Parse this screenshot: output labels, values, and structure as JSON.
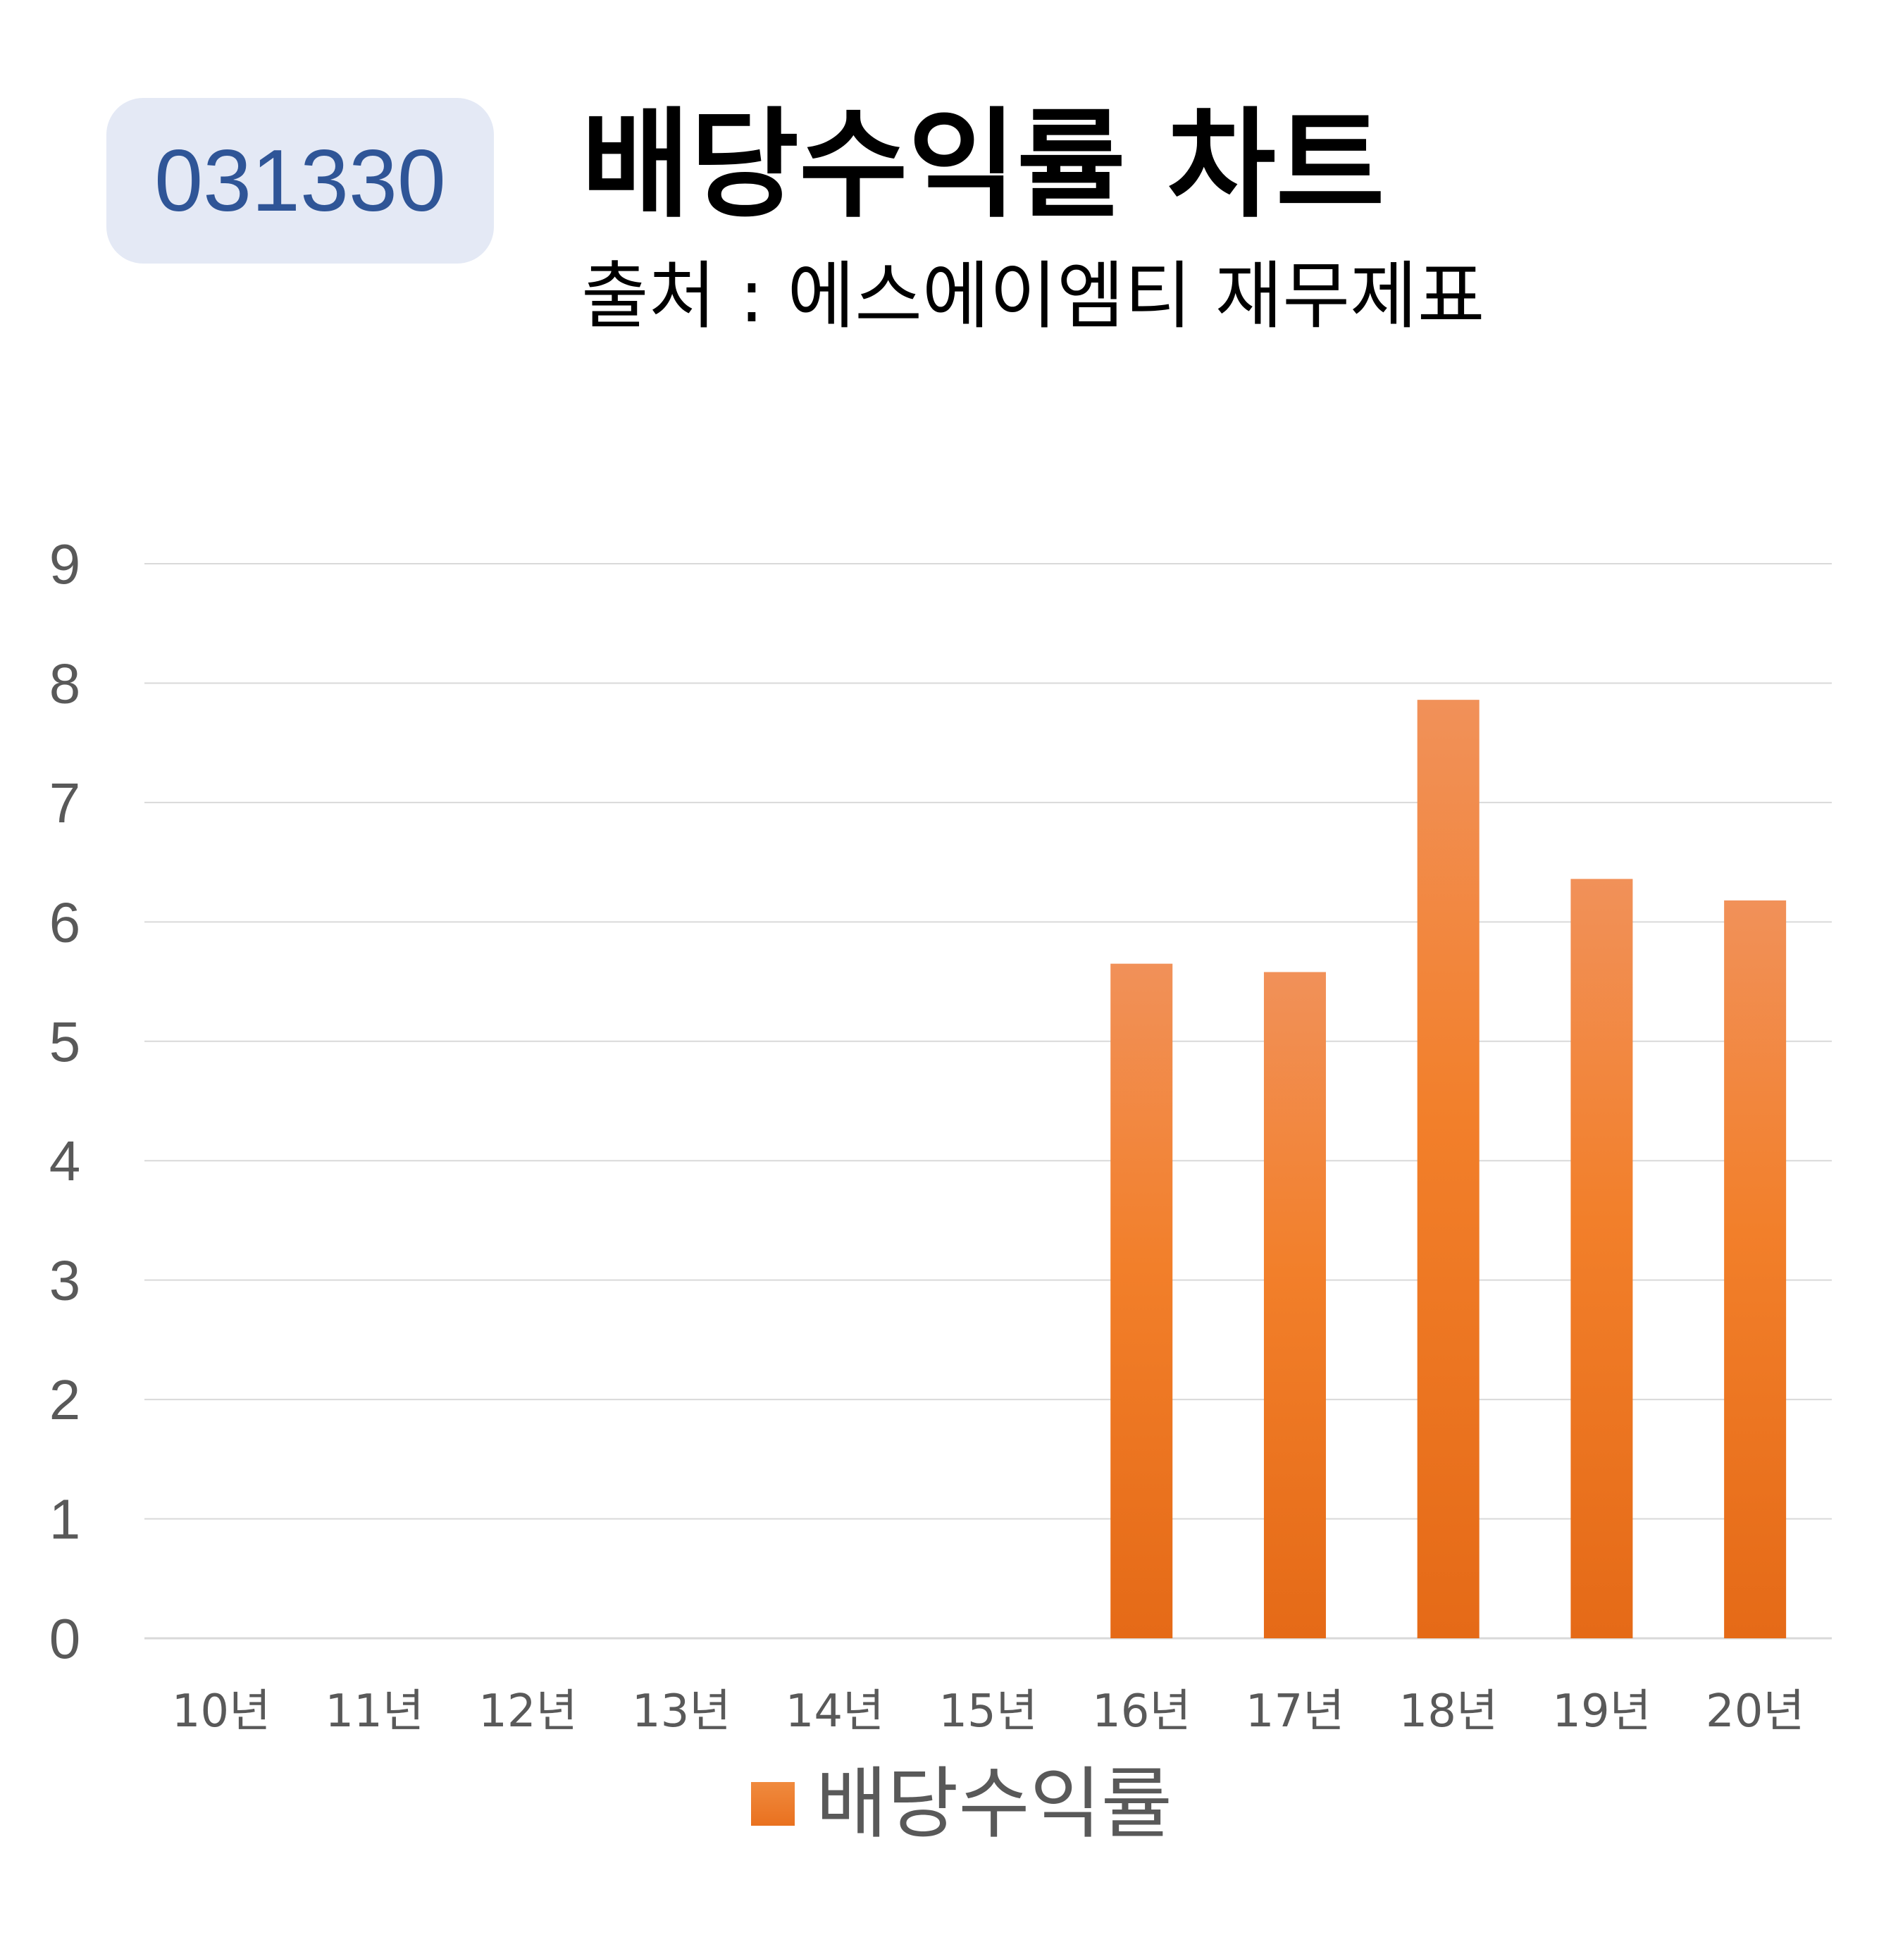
{
  "code": "031330",
  "title": "배당수익률 차트",
  "subtitle": "출처 : 에스에이엠티 재무제표",
  "colors": {
    "bar_top": "#f19159",
    "bar_mid": "#f27f2a",
    "bar_bottom": "#e56a17",
    "badge_bg": "#e4e9f5",
    "badge_text": "#2f5597",
    "grid": "#d9d9d9",
    "axis_text": "#595959"
  },
  "chart_data": {
    "type": "bar",
    "categories": [
      "10년",
      "11년",
      "12년",
      "13년",
      "14년",
      "15년",
      "16년",
      "17년",
      "18년",
      "19년",
      "20년"
    ],
    "series": [
      {
        "name": "배당수익률",
        "values": [
          null,
          null,
          null,
          null,
          null,
          null,
          5.65,
          5.58,
          7.86,
          6.36,
          6.18
        ]
      }
    ],
    "ylim": [
      0,
      9
    ],
    "yticks": [
      "0",
      "1",
      "2",
      "3",
      "4",
      "5",
      "6",
      "7",
      "8",
      "9"
    ],
    "grid": true,
    "legend": "bottom"
  }
}
